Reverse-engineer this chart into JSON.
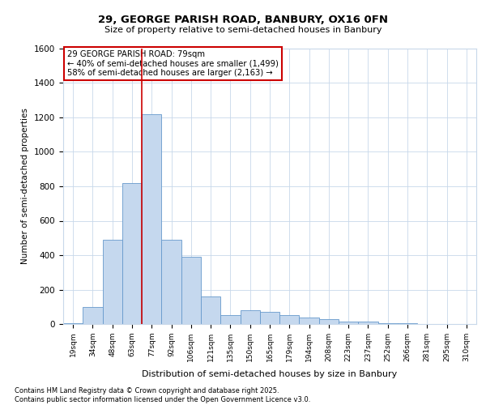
{
  "title1": "29, GEORGE PARISH ROAD, BANBURY, OX16 0FN",
  "title2": "Size of property relative to semi-detached houses in Banbury",
  "xlabel": "Distribution of semi-detached houses by size in Banbury",
  "ylabel": "Number of semi-detached properties",
  "categories": [
    "19sqm",
    "34sqm",
    "48sqm",
    "63sqm",
    "77sqm",
    "92sqm",
    "106sqm",
    "121sqm",
    "135sqm",
    "150sqm",
    "165sqm",
    "179sqm",
    "194sqm",
    "208sqm",
    "223sqm",
    "237sqm",
    "252sqm",
    "266sqm",
    "281sqm",
    "295sqm",
    "310sqm"
  ],
  "values": [
    5,
    100,
    490,
    820,
    1220,
    490,
    390,
    160,
    50,
    80,
    70,
    50,
    38,
    28,
    12,
    12,
    5,
    5,
    2,
    2,
    2
  ],
  "bar_color": "#c5d8ee",
  "bar_edge_color": "#6699cc",
  "ylim": [
    0,
    1600
  ],
  "yticks": [
    0,
    200,
    400,
    600,
    800,
    1000,
    1200,
    1400,
    1600
  ],
  "property_bin_index": 4,
  "vline_color": "#cc0000",
  "annotation_text": "29 GEORGE PARISH ROAD: 79sqm\n← 40% of semi-detached houses are smaller (1,499)\n58% of semi-detached houses are larger (2,163) →",
  "annotation_box_color": "#ffffff",
  "annotation_box_edge": "#cc0000",
  "footer": "Contains HM Land Registry data © Crown copyright and database right 2025.\nContains public sector information licensed under the Open Government Licence v3.0.",
  "bg_color": "#ffffff",
  "grid_color": "#c8d8ea"
}
